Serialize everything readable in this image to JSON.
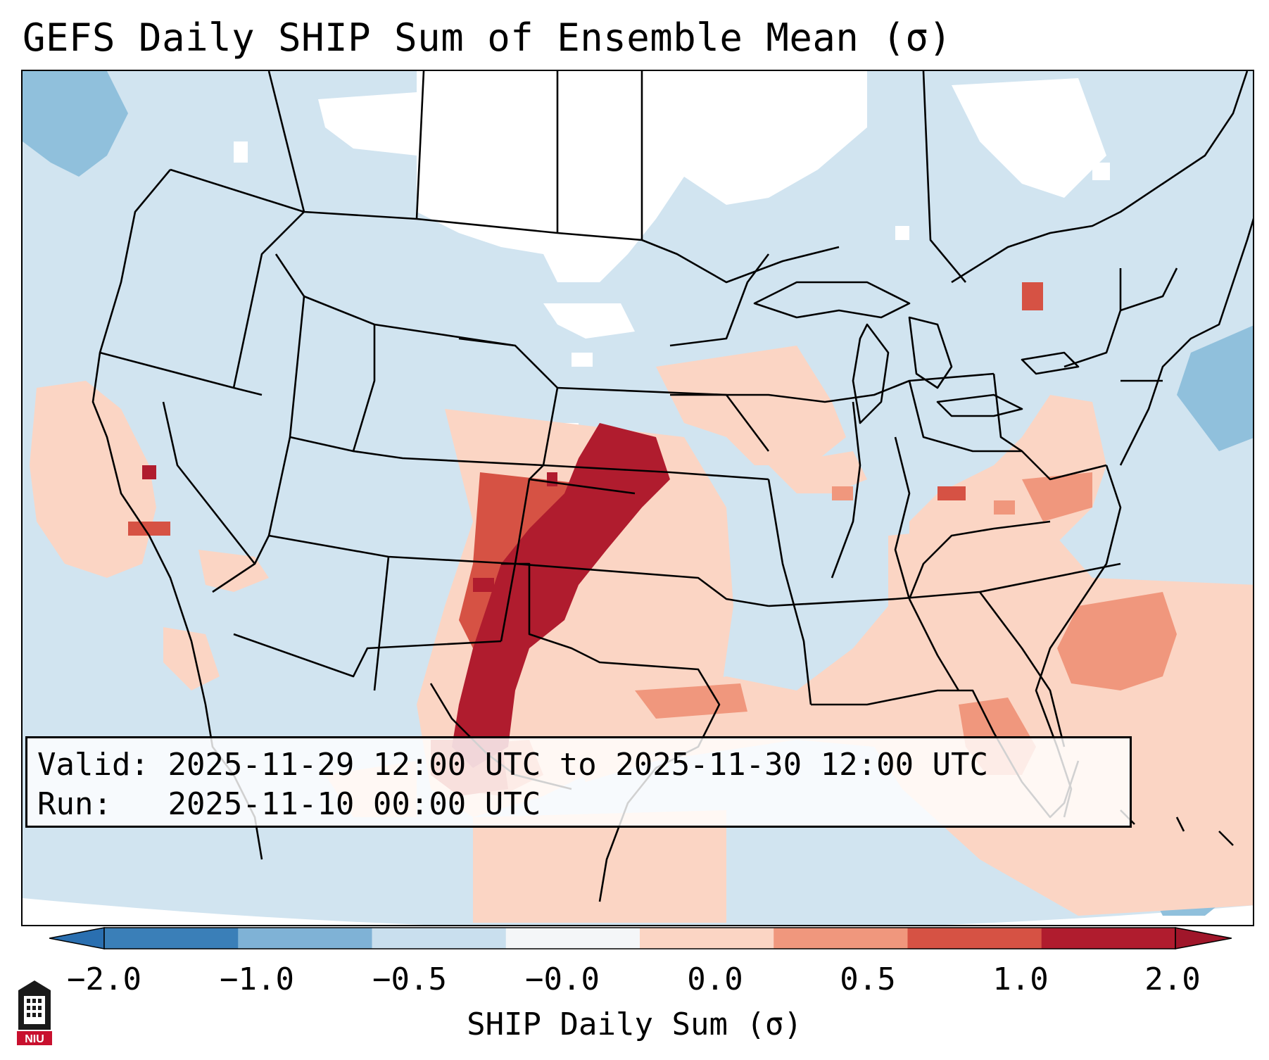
{
  "title": "GEFS Daily SHIP Sum of Ensemble Mean (σ)",
  "info_box": {
    "valid_label": "Valid:",
    "valid_value": "2025-11-29 12:00 UTC to 2025-11-30 12:00 UTC",
    "run_label": "Run:",
    "run_value": "2025-11-10 00:00 UTC"
  },
  "colorbar": {
    "label": "SHIP Daily Sum (σ)",
    "ticks": [
      "−2.0",
      "−1.0",
      "−0.5",
      "−0.0",
      "0.0",
      "0.5",
      "1.0",
      "2.0"
    ],
    "colors": [
      "#3a7fb8",
      "#7fb2d6",
      "#c9dfee",
      "#f4f6f8",
      "#fbd5c4",
      "#f0977d",
      "#d65244",
      "#b01c2e"
    ]
  },
  "map": {
    "region": "Contiguous United States",
    "background_color": "#d1e4f0",
    "field_colors": {
      "light_positive": "#fbd5c4",
      "medium_positive": "#f0977d",
      "strong_positive": "#d65244",
      "max_positive": "#b01c2e",
      "light_negative": "#d1e4f0",
      "medium_negative": "#90c0dc",
      "neutral": "#ffffff"
    }
  },
  "logo": {
    "text": "NIU"
  }
}
